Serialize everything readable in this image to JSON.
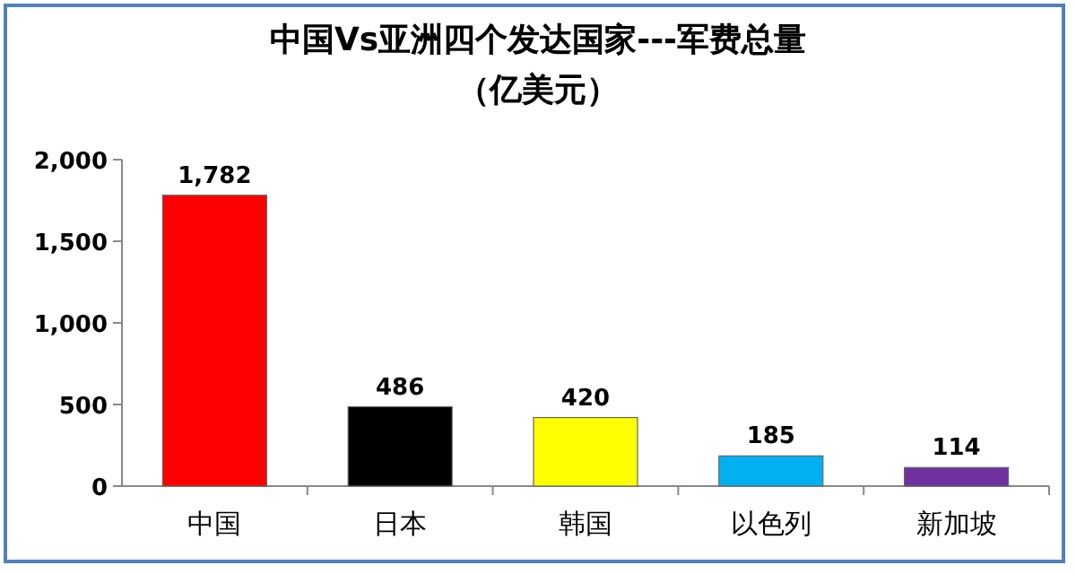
{
  "chart_data": {
    "type": "bar",
    "title": "中国Vs亚洲四个发达国家---军费总量",
    "subtitle": "（亿美元）",
    "categories": [
      "中国",
      "日本",
      "韩国",
      "以色列",
      "新加坡"
    ],
    "values": [
      1782,
      486,
      420,
      185,
      114
    ],
    "colors": [
      "#ff0000",
      "#000000",
      "#ffff00",
      "#00b0f0",
      "#7030a0"
    ],
    "ylim": [
      0,
      2000
    ],
    "yticks": [
      {
        "value": 0,
        "label": "0"
      },
      {
        "value": 500,
        "label": "500"
      },
      {
        "value": 1000,
        "label": "1,000"
      },
      {
        "value": 1500,
        "label": "1,500"
      },
      {
        "value": 2000,
        "label": "2,000"
      }
    ],
    "value_labels": [
      "1,782",
      "486",
      "420",
      "185",
      "114"
    ],
    "grid": false
  }
}
